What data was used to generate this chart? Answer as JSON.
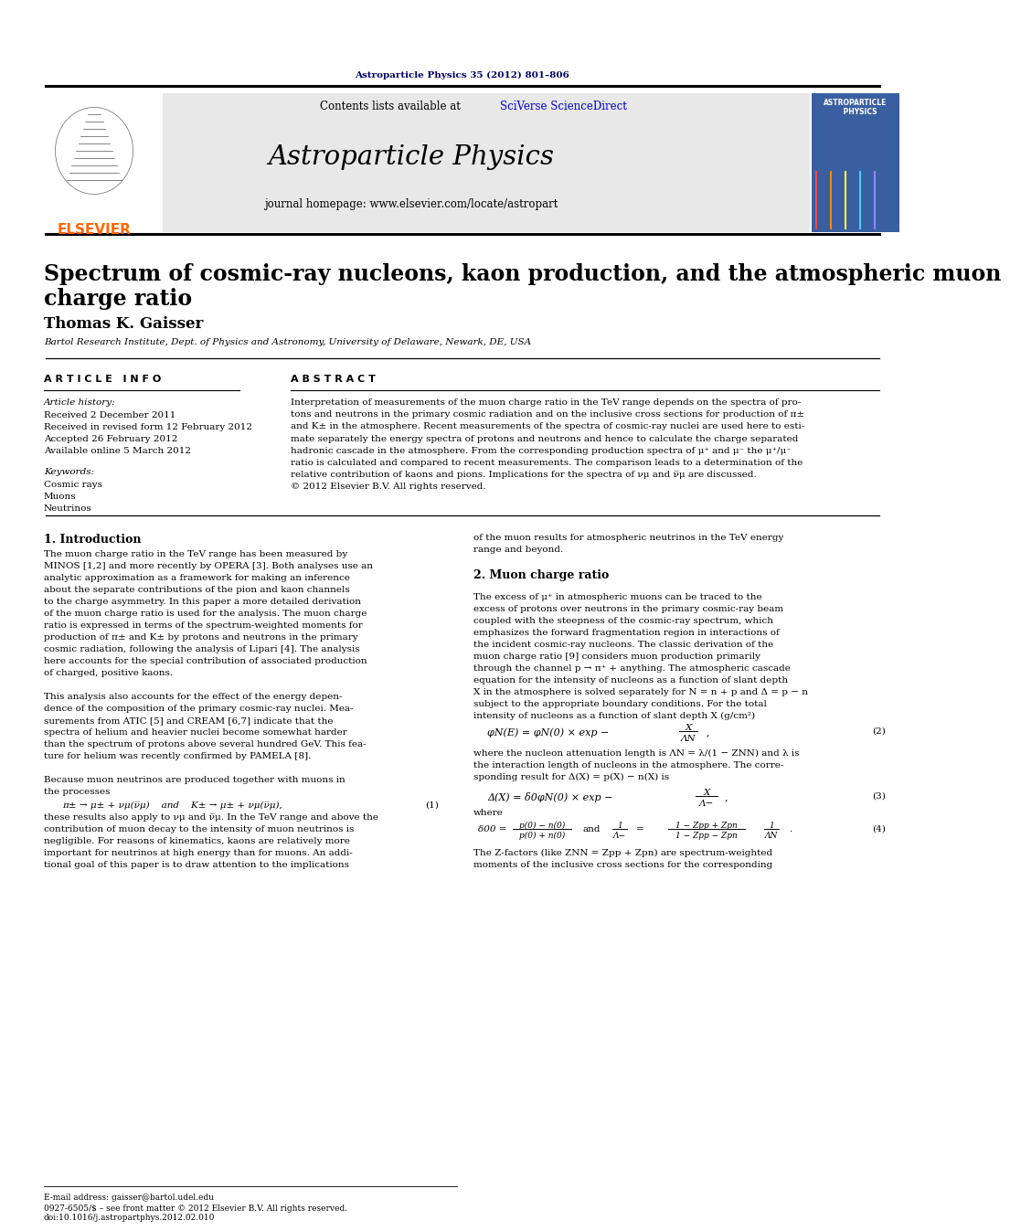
{
  "page_header_text": "Astroparticle Physics 35 (2012) 801–806",
  "journal_name": "Astroparticle Physics",
  "journal_homepage": "journal homepage: www.elsevier.com/locate/astropart",
  "contents_prefix": "Contents lists available at ",
  "contents_link": "SciVerse ScienceDirect",
  "elsevier_label": "ELSEVIER",
  "paper_title_line1": "Spectrum of cosmic-ray nucleons, kaon production, and the atmospheric muon",
  "paper_title_line2": "charge ratio",
  "author": "Thomas K. Gaisser",
  "affiliation": "Bartol Research Institute, Dept. of Physics and Astronomy, University of Delaware, Newark, DE, USA",
  "article_info_header": "A R T I C L E   I N F O",
  "abstract_header": "A B S T R A C T",
  "article_history_label": "Article history:",
  "received1": "Received 2 December 2011",
  "received2": "Received in revised form 12 February 2012",
  "accepted": "Accepted 26 February 2012",
  "available": "Available online 5 March 2012",
  "keywords_label": "Keywords:",
  "keywords": [
    "Cosmic rays",
    "Muons",
    "Neutrinos"
  ],
  "abstract_lines": [
    "Interpretation of measurements of the muon charge ratio in the TeV range depends on the spectra of pro-",
    "tons and neutrons in the primary cosmic radiation and on the inclusive cross sections for production of π±",
    "and K± in the atmosphere. Recent measurements of the spectra of cosmic-ray nuclei are used here to esti-",
    "mate separately the energy spectra of protons and neutrons and hence to calculate the charge separated",
    "hadronic cascade in the atmosphere. From the corresponding production spectra of μ⁺ and μ⁻ the μ⁺/μ⁻",
    "ratio is calculated and compared to recent measurements. The comparison leads to a determination of the",
    "relative contribution of kaons and pions. Implications for the spectra of νμ and ν̅μ are discussed.",
    "© 2012 Elsevier B.V. All rights reserved."
  ],
  "intro_header": "1. Introduction",
  "intro_lines": [
    "The muon charge ratio in the TeV range has been measured by",
    "MINOS [1,2] and more recently by OPERA [3]. Both analyses use an",
    "analytic approximation as a framework for making an inference",
    "about the separate contributions of the pion and kaon channels",
    "to the charge asymmetry. In this paper a more detailed derivation",
    "of the muon charge ratio is used for the analysis. The muon charge",
    "ratio is expressed in terms of the spectrum-weighted moments for",
    "production of π± and K± by protons and neutrons in the primary",
    "cosmic radiation, following the analysis of Lipari [4]. The analysis",
    "here accounts for the special contribution of associated production",
    "of charged, positive kaons.",
    "",
    "This analysis also accounts for the effect of the energy depen-",
    "dence of the composition of the primary cosmic-ray nuclei. Mea-",
    "surements from ATIC [5] and CREAM [6,7] indicate that the",
    "spectra of helium and heavier nuclei become somewhat harder",
    "than the spectrum of protons above several hundred GeV. This fea-",
    "ture for helium was recently confirmed by PAMELA [8].",
    "",
    "Because muon neutrinos are produced together with muons in",
    "the processes"
  ],
  "eq1_text": "π± → μ± + νμ(ν̅μ)    and    K± → μ± + νμ(ν̅μ),",
  "eq1_num": "(1)",
  "eq1_followup": [
    "these results also apply to νμ and ν̅μ. In the TeV range and above the",
    "contribution of muon decay to the intensity of muon neutrinos is",
    "negligible. For reasons of kinematics, kaons are relatively more",
    "important for neutrinos at high energy than for muons. An addi-",
    "tional goal of this paper is to draw attention to the implications"
  ],
  "col2_top_lines": [
    "of the muon results for atmospheric neutrinos in the TeV energy",
    "range and beyond."
  ],
  "muon_header": "2. Muon charge ratio",
  "muon_lines": [
    "The excess of μ⁺ in atmospheric muons can be traced to the",
    "excess of protons over neutrons in the primary cosmic-ray beam",
    "coupled with the steepness of the cosmic-ray spectrum, which",
    "emphasizes the forward fragmentation region in interactions of",
    "the incident cosmic-ray nucleons. The classic derivation of the",
    "muon charge ratio [9] considers muon production primarily",
    "through the channel p → π⁺ + anything. The atmospheric cascade",
    "equation for the intensity of nucleons as a function of slant depth",
    "X in the atmosphere is solved separately for N = n + p and Δ = p − n",
    "subject to the appropriate boundary conditions. For the total",
    "intensity of nucleons as a function of slant depth X (g/cm²)"
  ],
  "eq2_text": "φN(E) = φN(0) × exp −",
  "eq2_frac_num": "X",
  "eq2_frac_den": "ΛN",
  "eq2_num": "(2)",
  "eq2_desc_lines": [
    "where the nucleon attenuation length is ΛN = λ/(1 − ZNN) and λ is",
    "the interaction length of nucleons in the atmosphere. The corre-",
    "sponding result for Δ(X) = p(X) − n(X) is"
  ],
  "eq3_text": "Δ(X) = δ0φN(0) × exp −",
  "eq3_frac_num": "X",
  "eq3_frac_den": "Λ−",
  "eq3_num": "(3)",
  "eq3_where": "where",
  "eq4_left": "δ00 =",
  "eq4_frac1_num": "p(0) − n(0)",
  "eq4_frac1_den": "p(0) + n(0)",
  "eq4_mid": "and",
  "eq4_right": "1",
  "eq4_right_den": "Λ−",
  "eq4_eq": "=",
  "eq4_frac2_num": "1 − Zpp + Zpn",
  "eq4_frac2_den": "1 − Zpp − Zpn",
  "eq4_tail": "1",
  "eq4_tail_den": "ΛN",
  "eq4_num": "(4)",
  "eq4_followup": [
    "The Z-factors (like ZNN = Zpp + Zpn) are spectrum-weighted",
    "moments of the inclusive cross sections for the corresponding"
  ],
  "email_label": "E-mail address: gaisser@bartol.udel.edu",
  "footer1": "0927-6505/$ – see front matter © 2012 Elsevier B.V. All rights reserved.",
  "footer2": "doi:10.1016/j.astropartphys.2012.02.010",
  "header_color": "#000066",
  "elsevier_color": "#FF6600",
  "link_color": "#0000CC",
  "bg_header": "#E8E8E8",
  "bg_white": "#FFFFFF",
  "cover_bg": "#3A5FA0"
}
